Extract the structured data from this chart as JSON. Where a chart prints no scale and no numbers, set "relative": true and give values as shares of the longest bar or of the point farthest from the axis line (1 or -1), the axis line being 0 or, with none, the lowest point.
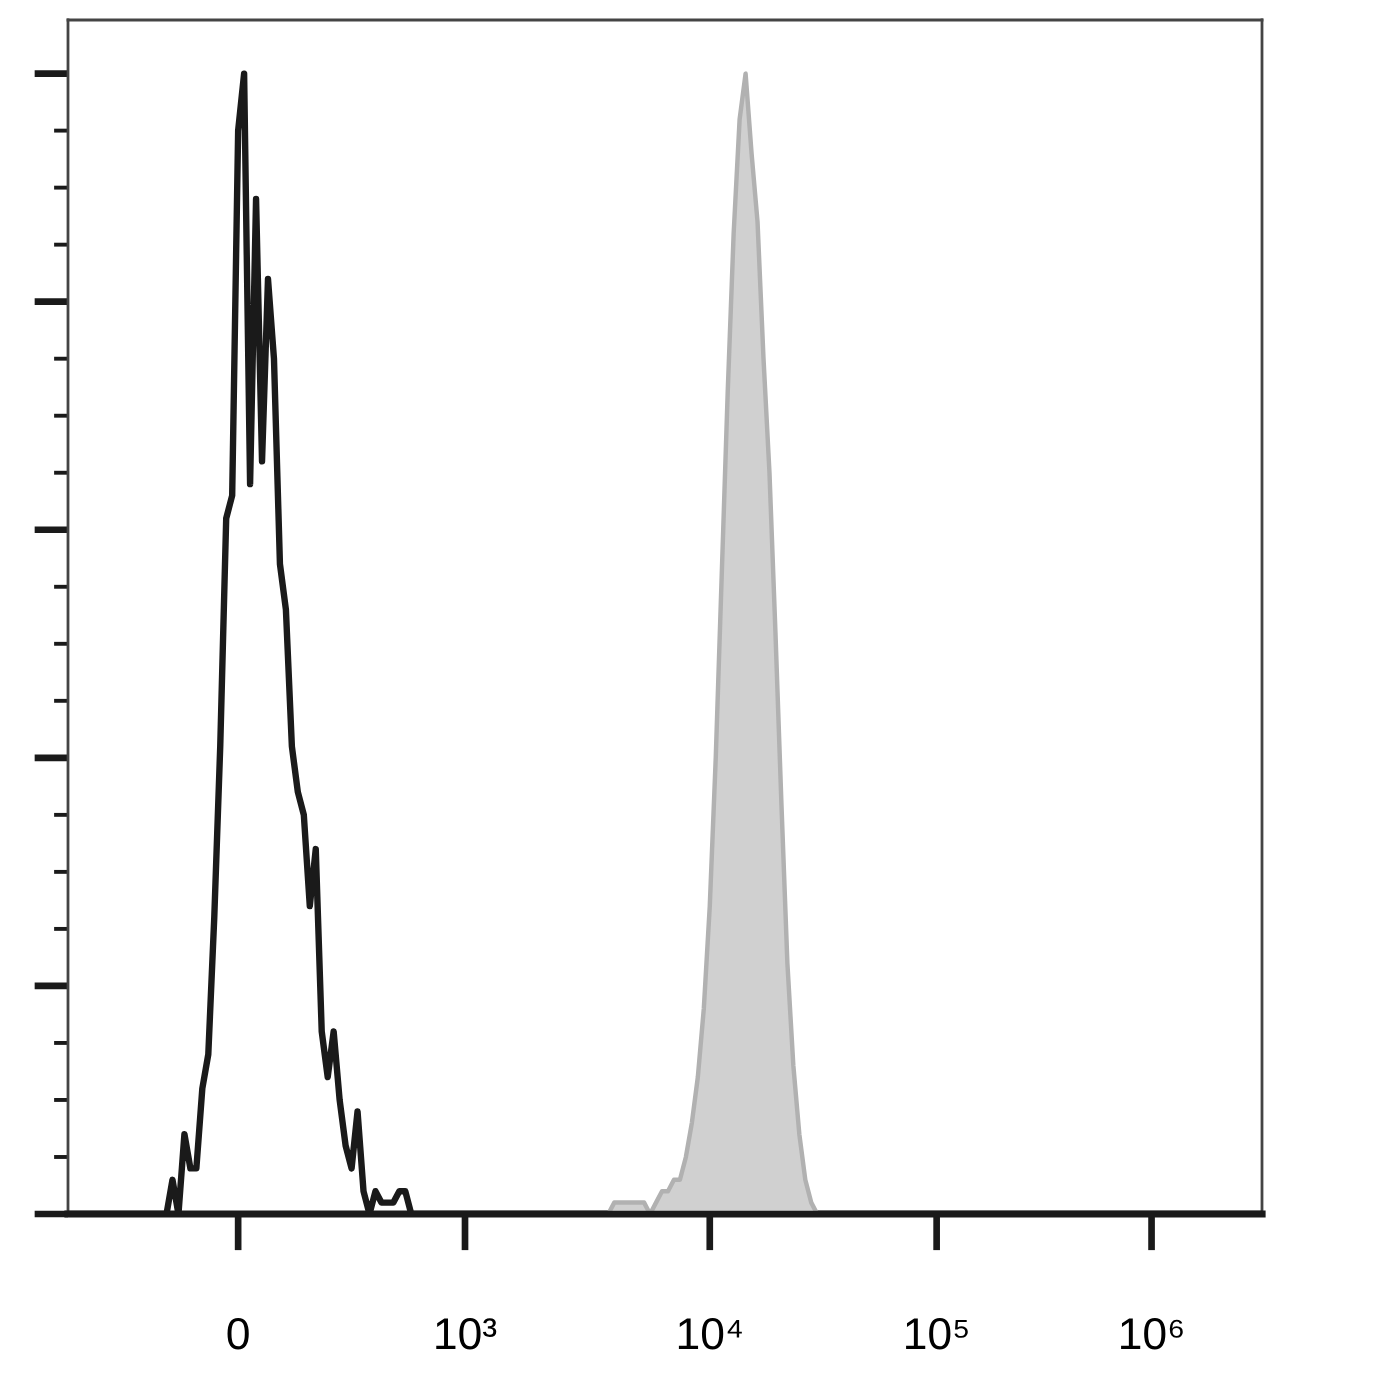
{
  "chart_data": {
    "type": "line",
    "relative": true,
    "tick_labels": "x",
    "categories": [
      null,
      null,
      null,
      null,
      null,
      null,
      null,
      null,
      null,
      null,
      null,
      null,
      null,
      null,
      null,
      null,
      null,
      null,
      null,
      null,
      null,
      null,
      null,
      null,
      null,
      null,
      null,
      null,
      "0",
      null,
      null,
      null,
      null,
      null,
      null,
      null,
      null,
      null,
      null,
      null,
      null,
      null,
      null,
      null,
      null,
      null,
      null,
      null,
      null,
      null,
      null,
      null,
      null,
      null,
      null,
      null,
      null,
      null,
      null,
      null,
      null,
      null,
      null,
      null,
      null,
      null,
      "10³",
      null,
      null,
      null,
      null,
      null,
      null,
      null,
      null,
      null,
      null,
      null,
      null,
      null,
      null,
      null,
      null,
      null,
      null,
      null,
      null,
      null,
      null,
      null,
      null,
      null,
      null,
      null,
      null,
      null,
      null,
      null,
      null,
      null,
      null,
      null,
      null,
      null,
      null,
      null,
      null,
      "10⁴",
      null,
      null,
      null,
      null,
      null,
      null,
      null,
      null,
      null,
      null,
      null,
      null,
      null,
      null,
      null,
      null,
      null,
      null,
      null,
      null,
      null,
      null,
      null,
      null,
      null,
      null,
      null,
      null,
      null,
      null,
      null,
      null,
      null,
      null,
      null,
      null,
      null,
      "10⁵",
      null,
      null,
      null,
      null,
      null,
      null,
      null,
      null,
      null,
      null,
      null,
      null,
      null,
      null,
      null,
      null,
      null,
      null,
      null,
      null,
      null,
      null,
      null,
      null,
      null,
      null,
      null,
      null,
      null,
      null,
      null,
      null,
      null,
      null,
      null,
      "10⁶",
      null,
      null,
      null,
      null,
      null,
      null,
      null,
      null,
      null,
      null,
      null,
      null,
      null,
      null,
      null,
      null,
      null,
      null
    ],
    "series": [
      {
        "type": "area",
        "color": "#d0d0d0",
        "values": [
          null,
          null,
          null,
          null,
          null,
          null,
          null,
          null,
          null,
          null,
          null,
          null,
          null,
          null,
          null,
          null,
          null,
          null,
          null,
          null,
          null,
          null,
          null,
          null,
          null,
          null,
          null,
          null,
          null,
          null,
          null,
          null,
          null,
          null,
          null,
          null,
          null,
          null,
          null,
          null,
          null,
          null,
          null,
          null,
          null,
          null,
          null,
          null,
          null,
          null,
          null,
          null,
          null,
          null,
          null,
          null,
          null,
          null,
          null,
          null,
          null,
          null,
          null,
          null,
          null,
          null,
          null,
          null,
          null,
          null,
          null,
          null,
          null,
          null,
          null,
          null,
          null,
          null,
          null,
          null,
          null,
          null,
          null,
          null,
          null,
          null,
          null,
          null,
          null,
          null,
          0,
          0.01,
          0.01,
          0.01,
          0.01,
          0.01,
          0.01,
          0,
          0.01,
          0.02,
          0.02,
          0.03,
          0.03,
          0.05,
          0.08,
          0.12,
          0.18,
          0.27,
          0.4,
          0.56,
          0.72,
          0.86,
          0.96,
          1.0,
          0.93,
          0.87,
          0.75,
          0.65,
          0.51,
          0.36,
          0.22,
          0.13,
          0.07,
          0.03,
          0.01,
          0,
          null,
          null,
          null,
          null,
          null,
          null,
          null,
          null,
          null,
          null,
          null,
          null,
          null,
          null,
          null,
          null,
          null,
          null,
          null,
          null,
          null,
          null,
          null,
          null,
          null,
          null,
          null,
          null,
          null,
          null,
          null,
          null,
          null,
          null,
          null,
          null,
          null,
          null,
          null,
          null,
          null,
          null,
          null,
          null,
          null,
          null,
          null,
          null,
          null,
          null,
          null,
          null,
          null,
          null,
          null,
          null,
          null,
          null,
          null,
          null,
          null,
          null,
          null,
          null,
          null,
          null,
          null,
          null,
          null,
          null,
          null,
          null,
          null,
          null
        ]
      },
      {
        "color": "#1a1a1a",
        "values": [
          0,
          0,
          0,
          0,
          0,
          0,
          0,
          0,
          0,
          0,
          0,
          0,
          0,
          0,
          0,
          0,
          0,
          0.03,
          0,
          0.07,
          0.04,
          0.04,
          0.11,
          0.14,
          0.26,
          0.41,
          0.61,
          0.63,
          0.95,
          1.0,
          0.64,
          0.89,
          0.66,
          0.82,
          0.75,
          0.57,
          0.53,
          0.41,
          0.37,
          0.35,
          0.27,
          0.32,
          0.16,
          0.12,
          0.16,
          0.1,
          0.06,
          0.04,
          0.09,
          0.02,
          0,
          0.02,
          0.01,
          0.01,
          0.01,
          0.02,
          0.02,
          0,
          0,
          0,
          0,
          0,
          0,
          0,
          0,
          0,
          0,
          0,
          0,
          0,
          0,
          0,
          0,
          0,
          0,
          0,
          0,
          0,
          0,
          0,
          0,
          0,
          0,
          0,
          0,
          0,
          0,
          0,
          0,
          0,
          0,
          0,
          0,
          0,
          0,
          0,
          0,
          0,
          0,
          0,
          0,
          0,
          0,
          0,
          0,
          0,
          0,
          0,
          0,
          0,
          0,
          0,
          0,
          0,
          0,
          0,
          0,
          0,
          0,
          0,
          0,
          0,
          0,
          0,
          0,
          0,
          0,
          0,
          0,
          0,
          0,
          0,
          0,
          0,
          0,
          0,
          0,
          0,
          0,
          0,
          0,
          0,
          0,
          0,
          0,
          0,
          0,
          0,
          0,
          0,
          0,
          0,
          0,
          0,
          0,
          0,
          0,
          0,
          0,
          0,
          0,
          0,
          0,
          0,
          0,
          0,
          0,
          0,
          0,
          0,
          0,
          0,
          0,
          0,
          0,
          0,
          0,
          0,
          0,
          0,
          0,
          0,
          0,
          0,
          0,
          0,
          0,
          0,
          0,
          0,
          0,
          0,
          0,
          0,
          0,
          0,
          0,
          0,
          0,
          0
        ]
      }
    ]
  }
}
